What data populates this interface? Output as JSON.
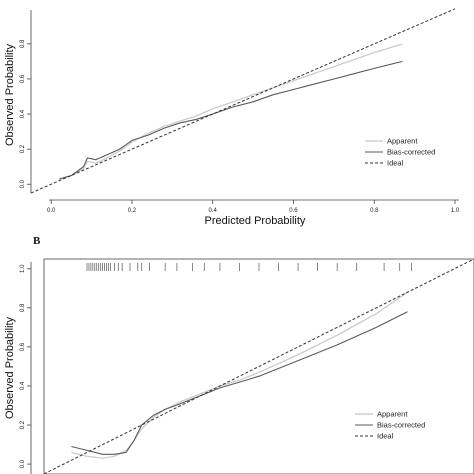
{
  "chart_data": [
    {
      "type": "line",
      "panel": "A",
      "title": "",
      "xlabel": "Predicted Probability",
      "ylabel": "Observed Probability",
      "xlim": [
        -0.05,
        1.0
      ],
      "ylim": [
        -0.05,
        1.05
      ],
      "xticks": [
        "0.0",
        "0.2",
        "0.4",
        "0.6",
        "0.8",
        "1.0"
      ],
      "yticks": [
        "0.0",
        "0.2",
        "0.4",
        "0.6",
        "0.8"
      ],
      "legend_position": "bottom-right",
      "series": [
        {
          "name": "Apparent",
          "style": "light",
          "x": [
            0.02,
            0.05,
            0.08,
            0.09,
            0.11,
            0.13,
            0.17,
            0.2,
            0.24,
            0.28,
            0.32,
            0.36,
            0.4,
            0.45,
            0.5,
            0.55,
            0.6,
            0.65,
            0.7,
            0.75,
            0.8,
            0.87
          ],
          "y": [
            0.03,
            0.05,
            0.09,
            0.13,
            0.12,
            0.14,
            0.19,
            0.24,
            0.29,
            0.33,
            0.36,
            0.39,
            0.43,
            0.47,
            0.51,
            0.55,
            0.59,
            0.63,
            0.67,
            0.71,
            0.75,
            0.8
          ]
        },
        {
          "name": "Bias-corrected",
          "style": "dark",
          "x": [
            0.02,
            0.05,
            0.08,
            0.09,
            0.11,
            0.13,
            0.17,
            0.2,
            0.24,
            0.28,
            0.32,
            0.36,
            0.4,
            0.45,
            0.5,
            0.55,
            0.6,
            0.65,
            0.7,
            0.75,
            0.8,
            0.87
          ],
          "y": [
            0.03,
            0.05,
            0.1,
            0.15,
            0.14,
            0.16,
            0.2,
            0.25,
            0.28,
            0.32,
            0.35,
            0.37,
            0.4,
            0.44,
            0.47,
            0.51,
            0.54,
            0.57,
            0.6,
            0.63,
            0.66,
            0.7
          ]
        },
        {
          "name": "Ideal",
          "style": "dashed",
          "x": [
            -0.05,
            1.0
          ],
          "y": [
            -0.05,
            1.0
          ]
        }
      ]
    },
    {
      "type": "line",
      "panel": "B",
      "title": "",
      "xlabel": "",
      "ylabel": "Observed Probability",
      "xlim": [
        -0.05,
        1.05
      ],
      "ylim": [
        -0.02,
        1.05
      ],
      "yticks": [
        "0.0",
        "0.2",
        "0.4",
        "0.6",
        "0.8",
        "1.0"
      ],
      "legend_position": "bottom-right",
      "rug_x": [
        0.06,
        0.065,
        0.07,
        0.075,
        0.08,
        0.085,
        0.09,
        0.095,
        0.1,
        0.105,
        0.11,
        0.115,
        0.12,
        0.13,
        0.14,
        0.15,
        0.17,
        0.19,
        0.2,
        0.22,
        0.26,
        0.29,
        0.33,
        0.36,
        0.4,
        0.45,
        0.5,
        0.55,
        0.6,
        0.65,
        0.7,
        0.75,
        0.82,
        0.86,
        0.89
      ],
      "series": [
        {
          "name": "Apparent",
          "style": "light",
          "x": [
            0.02,
            0.06,
            0.1,
            0.13,
            0.16,
            0.18,
            0.2,
            0.23,
            0.26,
            0.3,
            0.35,
            0.4,
            0.45,
            0.5,
            0.6,
            0.7,
            0.8,
            0.88
          ],
          "y": [
            0.06,
            0.04,
            0.03,
            0.04,
            0.07,
            0.12,
            0.18,
            0.24,
            0.28,
            0.32,
            0.36,
            0.4,
            0.43,
            0.47,
            0.56,
            0.66,
            0.77,
            0.88
          ]
        },
        {
          "name": "Bias-corrected",
          "style": "dark",
          "x": [
            0.02,
            0.06,
            0.1,
            0.13,
            0.16,
            0.18,
            0.2,
            0.23,
            0.26,
            0.3,
            0.35,
            0.4,
            0.45,
            0.5,
            0.6,
            0.7,
            0.8,
            0.88
          ],
          "y": [
            0.09,
            0.07,
            0.05,
            0.05,
            0.06,
            0.12,
            0.2,
            0.25,
            0.28,
            0.31,
            0.35,
            0.39,
            0.42,
            0.45,
            0.53,
            0.61,
            0.7,
            0.78
          ]
        },
        {
          "name": "Ideal",
          "style": "dashed",
          "x": [
            -0.05,
            1.05
          ],
          "y": [
            -0.05,
            1.05
          ]
        }
      ]
    }
  ],
  "labels": {
    "panel_b_letter": "B"
  },
  "colors": {
    "apparent": "#c8c8c8",
    "bias_corrected": "#5a5a5a",
    "ideal": "#333333"
  }
}
